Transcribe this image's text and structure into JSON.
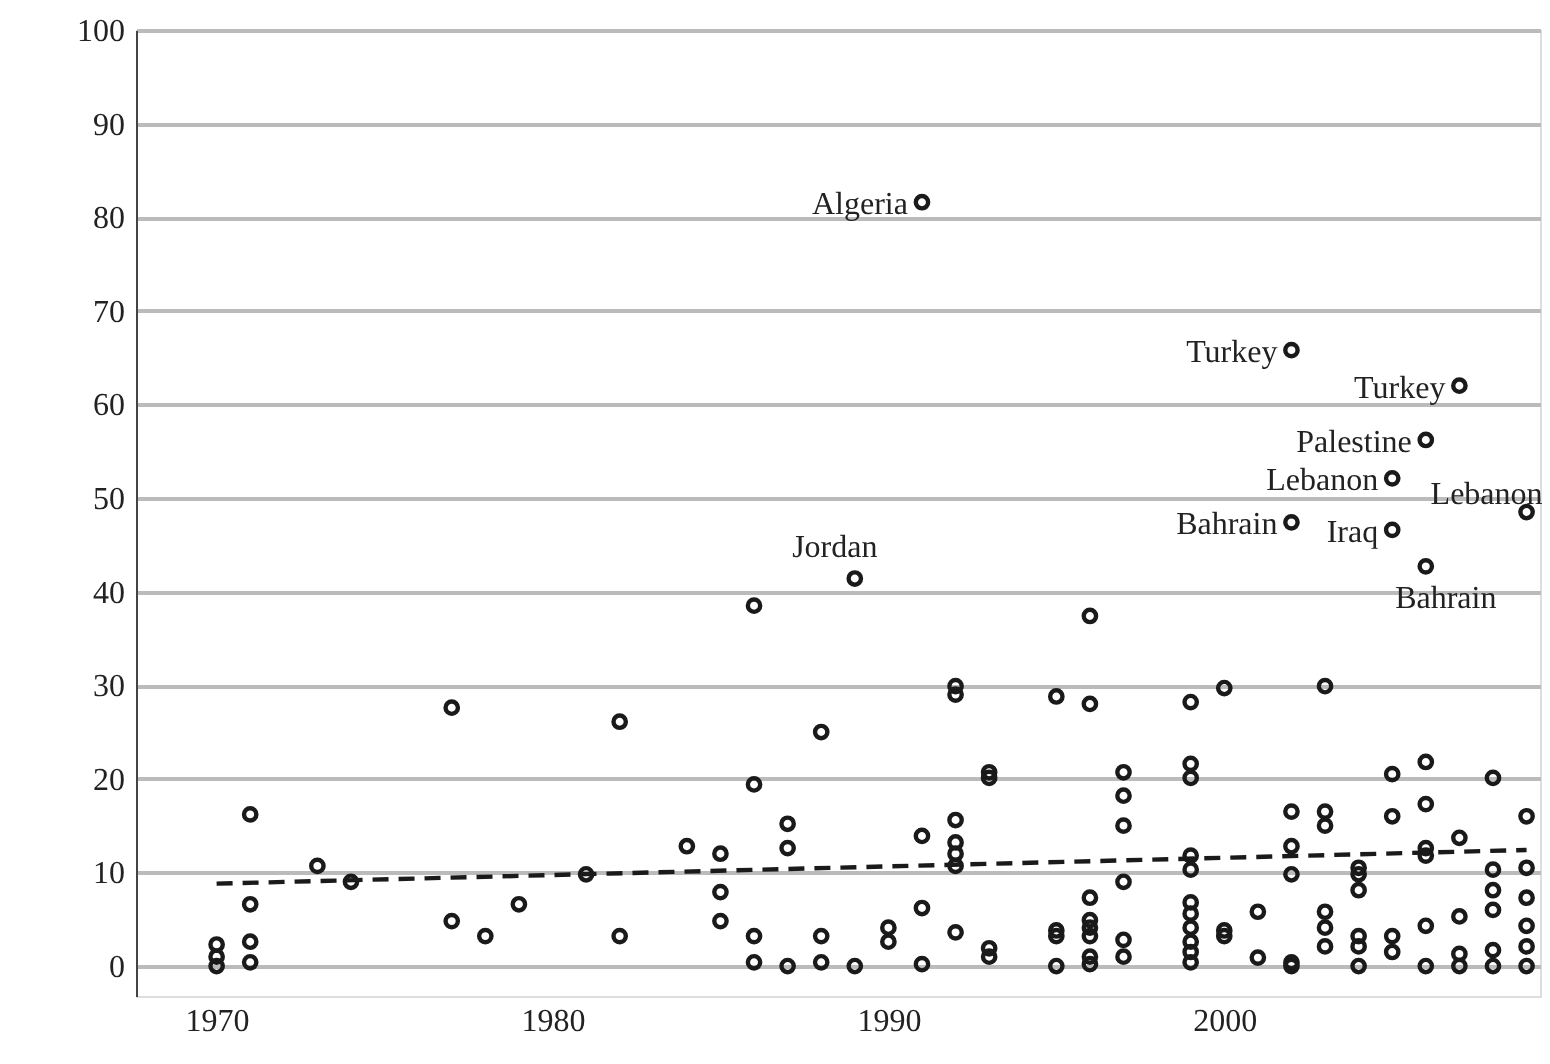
{
  "chart_data": {
    "type": "scatter",
    "xlim": [
      1967.6,
      2009.4
    ],
    "ylim": [
      -3.2,
      100
    ],
    "xticks": [
      1970,
      1980,
      1990,
      2000
    ],
    "yticks": [
      0,
      10,
      20,
      30,
      40,
      50,
      60,
      70,
      80,
      90,
      100
    ],
    "grid": "y",
    "series": [
      {
        "marker": "circle",
        "color": "#1a1a1a",
        "x": [
          1970,
          1970,
          1970,
          1971,
          1971,
          1971,
          1971,
          1973,
          1974,
          1977,
          1977,
          1978,
          1979,
          1981,
          1982,
          1982,
          1984,
          1985,
          1985,
          1985,
          1986,
          1986,
          1986,
          1986,
          1987,
          1987,
          1987,
          1988,
          1988,
          1988,
          1989,
          1989,
          1990,
          1990,
          1991,
          1991,
          1991,
          1991,
          1992,
          1992,
          1992,
          1992,
          1992,
          1992,
          1992,
          1993,
          1993,
          1993,
          1993,
          1995,
          1995,
          1995,
          1995,
          1996,
          1996,
          1996,
          1996,
          1996,
          1996,
          1996,
          1996,
          1997,
          1997,
          1997,
          1997,
          1997,
          1997,
          1999,
          1999,
          1999,
          1999,
          1999,
          1999,
          1999,
          1999,
          1999,
          1999,
          1999,
          2000,
          2000,
          2000,
          2001,
          2001,
          2002,
          2002,
          2002,
          2002,
          2002,
          2002,
          2002,
          2003,
          2003,
          2003,
          2003,
          2003,
          2003,
          2004,
          2004,
          2004,
          2004,
          2004,
          2004,
          2005,
          2005,
          2005,
          2005,
          2005,
          2005,
          2006,
          2006,
          2006,
          2006,
          2006,
          2006,
          2006,
          2006,
          2007,
          2007,
          2007,
          2007,
          2007,
          2008,
          2008,
          2008,
          2008,
          2008,
          2008,
          2009,
          2009,
          2009,
          2009,
          2009,
          2009,
          2009
        ],
        "values": [
          2.3,
          1.0,
          0,
          16.2,
          6.6,
          2.6,
          0.4,
          10.7,
          9.0,
          27.6,
          4.8,
          3.2,
          6.6,
          9.8,
          26.1,
          3.2,
          12.8,
          12.0,
          7.9,
          4.8,
          38.5,
          19.4,
          3.2,
          0.4,
          0,
          15.2,
          12.6,
          25.0,
          3.2,
          0.4,
          41.4,
          0,
          4.1,
          2.6,
          81.6,
          13.9,
          6.2,
          0.2,
          29.9,
          29.0,
          15.6,
          13.2,
          12.0,
          10.7,
          3.6,
          20.7,
          20.1,
          1.9,
          1.0,
          28.8,
          3.8,
          3.2,
          0,
          37.4,
          28.0,
          7.3,
          4.9,
          4.1,
          3.2,
          1.0,
          0.2,
          20.7,
          18.2,
          15.0,
          9.0,
          2.8,
          1.0,
          28.2,
          21.6,
          20.1,
          11.8,
          10.3,
          6.8,
          5.6,
          4.1,
          2.6,
          1.5,
          0.4,
          29.7,
          3.8,
          3.2,
          5.8,
          0.9,
          65.8,
          47.4,
          16.5,
          12.8,
          9.8,
          0.4,
          0,
          29.9,
          16.5,
          15.0,
          5.8,
          4.1,
          2.1,
          10.5,
          9.8,
          8.1,
          3.2,
          2.1,
          0,
          52.1,
          46.6,
          20.5,
          16.0,
          3.2,
          1.5,
          56.2,
          42.7,
          21.8,
          17.3,
          12.6,
          11.8,
          4.3,
          0,
          62.0,
          13.7,
          5.3,
          1.3,
          0,
          20.1,
          10.3,
          8.1,
          6.0,
          1.7,
          0,
          48.5,
          16.0,
          10.5,
          7.3,
          4.3,
          2.1,
          0
        ]
      },
      {
        "type": "line",
        "marker": "none",
        "color": "#1a1a1a",
        "line_style": "dashed",
        "x": [
          1970,
          2009
        ],
        "values": [
          8.8,
          12.4
        ]
      }
    ],
    "annotations": [
      {
        "text": "Algeria",
        "x": 1991,
        "y": 81.6
      },
      {
        "text": "Jordan",
        "x": 1989,
        "y": 41.4
      },
      {
        "text": "Turkey",
        "x": 2002,
        "y": 65.8
      },
      {
        "text": "Turkey",
        "x": 2007,
        "y": 62.0
      },
      {
        "text": "Palestine",
        "x": 2006,
        "y": 56.2
      },
      {
        "text": "Lebanon",
        "x": 2005,
        "y": 52.1
      },
      {
        "text": "Lebanon",
        "x": 2009,
        "y": 48.5
      },
      {
        "text": "Bahrain",
        "x": 2002,
        "y": 47.4
      },
      {
        "text": "Iraq",
        "x": 2005,
        "y": 46.6
      },
      {
        "text": "Bahrain",
        "x": 2006,
        "y": 42.7
      }
    ]
  }
}
